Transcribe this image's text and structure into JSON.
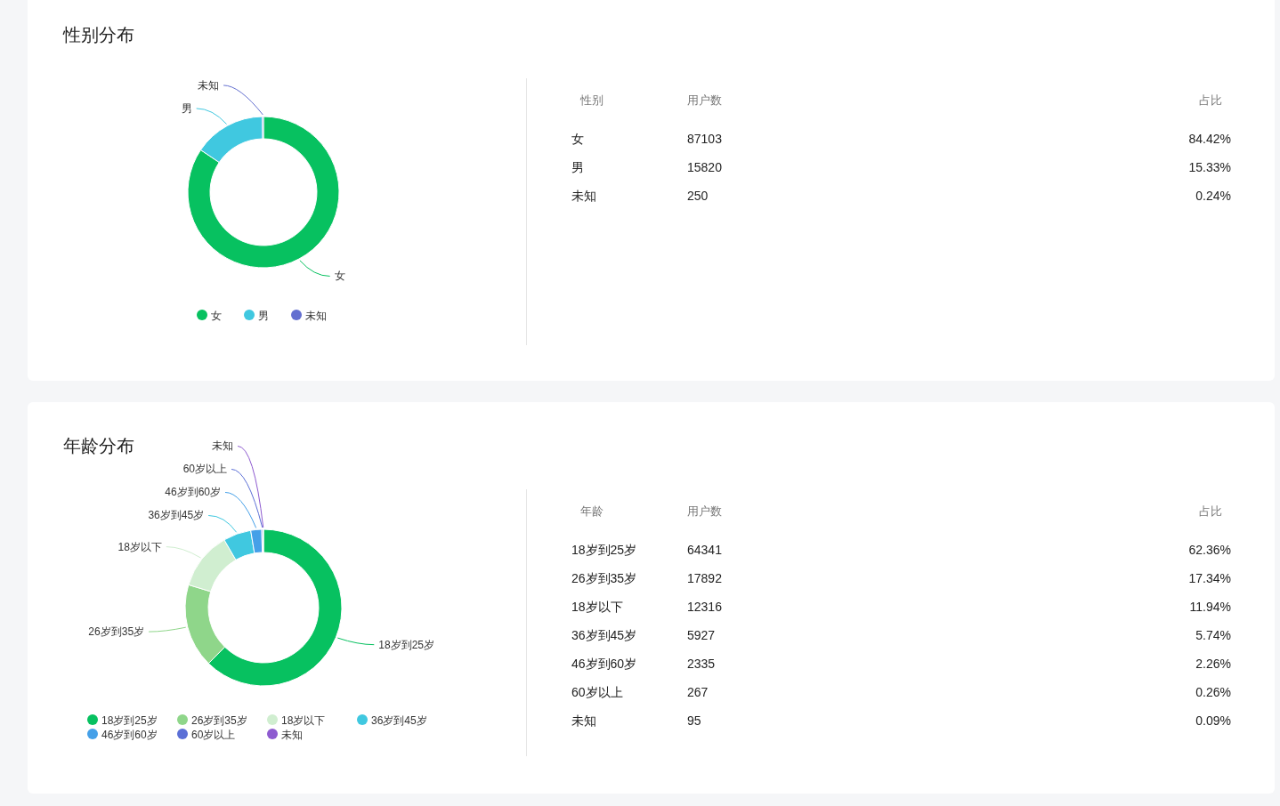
{
  "chart_data": [
    {
      "type": "donut",
      "title": "性别分布",
      "categories": [
        "女",
        "男",
        "未知"
      ],
      "values": [
        84.42,
        15.33,
        0.24
      ],
      "colors": [
        "#07c160",
        "#40c8e0",
        "#6470d0"
      ],
      "legend": "bottom"
    },
    {
      "type": "other",
      "annotations": [
        "性别",
        "用户数",
        "占比",
        "女",
        "87103",
        "84.42%",
        "男",
        "15820",
        "15.33%",
        "未知",
        "250",
        "0.24%"
      ]
    },
    {
      "type": "donut",
      "title": "年龄分布",
      "categories": [
        "18岁到25岁",
        "26岁到35岁",
        "18岁以下",
        "36岁到45岁",
        "46岁到60岁",
        "60岁以上",
        "未知"
      ],
      "values": [
        62.36,
        17.34,
        11.94,
        5.74,
        2.26,
        0.26,
        0.09
      ],
      "colors": [
        "#07c160",
        "#8fd68a",
        "#d0eed0",
        "#40c8e0",
        "#45a0e8",
        "#5b6fd6",
        "#8e5bd0"
      ],
      "legend": "bottom"
    },
    {
      "type": "other",
      "annotations": [
        "年龄",
        "用户数",
        "占比",
        "18岁到25岁",
        "64341",
        "62.36%",
        "26岁到35岁",
        "17892",
        "17.34%",
        "18岁以下",
        "12316",
        "11.94%",
        "36岁到45岁",
        "5927",
        "5.74%",
        "46岁到60岁",
        "2335",
        "2.26%",
        "60岁以上",
        "267",
        "0.26%",
        "未知",
        "95",
        "0.09%"
      ]
    }
  ]
}
